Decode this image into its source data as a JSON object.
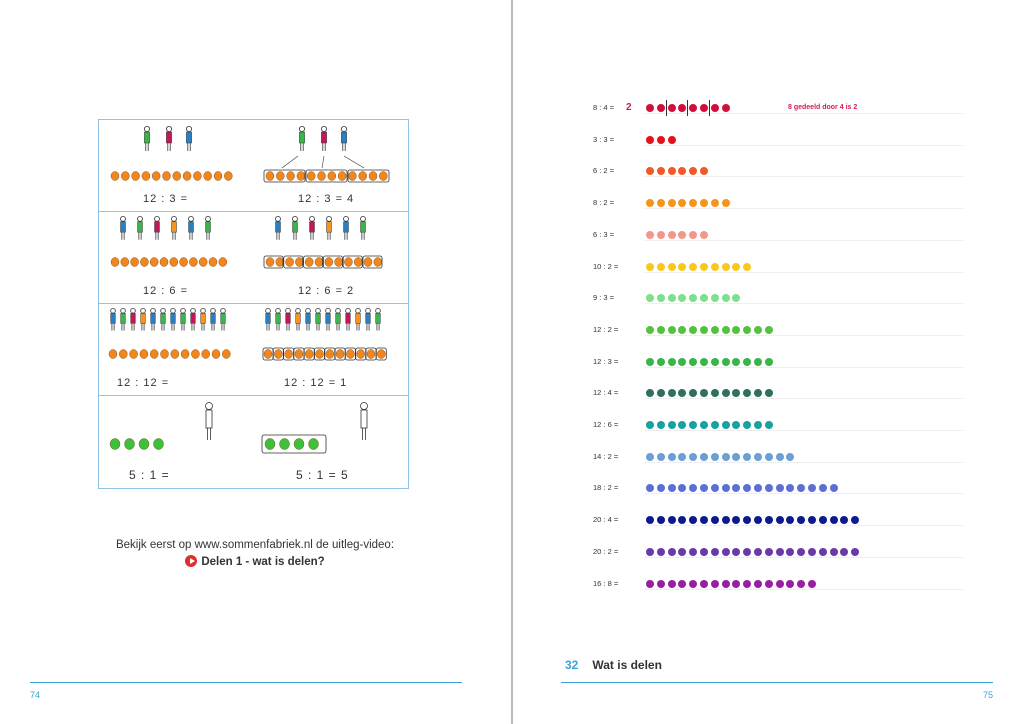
{
  "left_page": {
    "page_number": "74",
    "grid": [
      {
        "left_eq": "12 : 3 =",
        "right_eq": "12 : 3 = 4"
      },
      {
        "left_eq": "12 : 6 =",
        "right_eq": "12 : 6 = 2"
      },
      {
        "left_eq": "12 : 12 =",
        "right_eq": "12 : 12 = 1"
      },
      {
        "left_eq": "5 : 1 =",
        "right_eq": "5 : 1 = 5"
      }
    ],
    "video_intro": "Bekijk eerst op www.sommenfabriek.nl de uitleg-video:",
    "video_title": "Delen 1 - wat is delen?"
  },
  "right_page": {
    "page_number": "75",
    "chapter_number": "32",
    "chapter_title": "Wat is delen",
    "example": {
      "answer": "2",
      "note": "8 gedeeld door 4 is 2"
    },
    "rows": [
      {
        "label": "8 : 4 =",
        "count": 8,
        "color": "#d0103a"
      },
      {
        "label": "3 : 3 =",
        "count": 3,
        "color": "#e3131b"
      },
      {
        "label": "6 : 2 =",
        "count": 6,
        "color": "#f05a28"
      },
      {
        "label": "8 : 2 =",
        "count": 8,
        "color": "#f7941d"
      },
      {
        "label": "6 : 3 =",
        "count": 6,
        "color": "#f4978b"
      },
      {
        "label": "10 :  2 =",
        "count": 10,
        "color": "#f7c81e"
      },
      {
        "label": "9 : 3 =",
        "count": 9,
        "color": "#7ee08a"
      },
      {
        "label": "12 : 2 =",
        "count": 12,
        "color": "#56c13f"
      },
      {
        "label": "12 : 3 =",
        "count": 12,
        "color": "#39b54a"
      },
      {
        "label": "12 : 4 =",
        "count": 12,
        "color": "#2e6f61"
      },
      {
        "label": "12 : 6 =",
        "count": 12,
        "color": "#17a2a2"
      },
      {
        "label": "14 : 2 =",
        "count": 14,
        "color": "#6aa0d3"
      },
      {
        "label": "18 : 2 =",
        "count": 18,
        "color": "#5c6fd6"
      },
      {
        "label": "20 : 4 =",
        "count": 20,
        "color": "#0d1a8f"
      },
      {
        "label": "20 : 2 =",
        "count": 20,
        "color": "#6a3aa8"
      },
      {
        "label": "16 : 8 =",
        "count": 16,
        "color": "#9a1ea1"
      }
    ]
  }
}
